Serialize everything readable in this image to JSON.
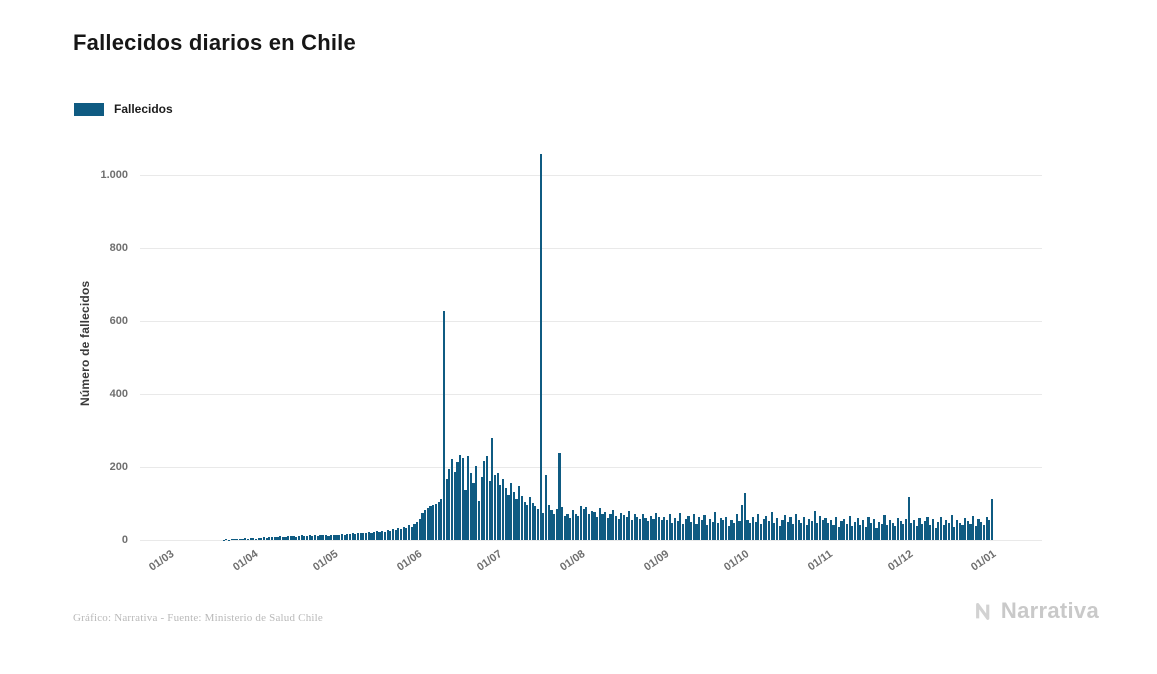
{
  "page": {
    "background": "#ffffff"
  },
  "footer": {
    "credit": "Gráfico: Narrativa - Fuente: Ministerio de Salud Chile",
    "logo_text": "Narrativa"
  },
  "chart_data": {
    "type": "bar",
    "title": "Fallecidos diarios en Chile",
    "legend_label": "Fallecidos",
    "legend_position": "top-left",
    "ylabel": "Número de fallecidos",
    "xlabel": "",
    "grid": true,
    "bar_color": "#0f5b82",
    "ylim": [
      0,
      1080
    ],
    "y_ticks": {
      "labels": [
        "0",
        "200",
        "400",
        "600",
        "800",
        "1.000"
      ],
      "values": [
        0,
        200,
        400,
        600,
        800,
        1000
      ]
    },
    "x_ticks": {
      "labels": [
        "01/03",
        "01/04",
        "01/05",
        "01/06",
        "01/07",
        "01/08",
        "01/09",
        "01/10",
        "01/11",
        "01/12",
        "01/01"
      ],
      "day_indices": [
        0,
        31,
        61,
        92,
        122,
        153,
        184,
        214,
        245,
        275,
        306
      ]
    },
    "values": [
      0,
      0,
      0,
      0,
      0,
      0,
      0,
      0,
      0,
      0,
      0,
      0,
      0,
      0,
      0,
      0,
      0,
      0,
      0,
      0,
      1,
      2,
      1,
      2,
      3,
      2,
      4,
      3,
      5,
      4,
      6,
      5,
      4,
      6,
      5,
      7,
      6,
      8,
      7,
      9,
      8,
      10,
      9,
      8,
      11,
      10,
      12,
      9,
      11,
      13,
      10,
      12,
      14,
      11,
      13,
      12,
      14,
      13,
      15,
      12,
      14,
      13,
      15,
      14,
      16,
      15,
      17,
      16,
      18,
      17,
      19,
      18,
      20,
      19,
      21,
      20,
      22,
      24,
      21,
      26,
      23,
      28,
      25,
      30,
      27,
      33,
      30,
      36,
      32,
      40,
      36,
      45,
      49,
      57,
      75,
      81,
      87,
      92,
      96,
      98,
      103,
      112,
      627,
      168,
      195,
      222,
      186,
      214,
      232,
      224,
      138,
      231,
      184,
      157,
      202,
      108,
      173,
      216,
      230,
      162,
      279,
      177,
      183,
      151,
      166,
      142,
      123,
      156,
      131,
      112,
      147,
      121,
      104,
      96,
      117,
      101,
      92,
      86,
      1057,
      75,
      178,
      96,
      81,
      70,
      86,
      238,
      90,
      66,
      71,
      61,
      81,
      71,
      66,
      94,
      84,
      90,
      71,
      80,
      76,
      64,
      88,
      72,
      78,
      61,
      70,
      83,
      65,
      58,
      75,
      68,
      62,
      80,
      55,
      70,
      64,
      58,
      72,
      60,
      52,
      66,
      58,
      74,
      62,
      56,
      64,
      55,
      70,
      48,
      60,
      52,
      75,
      45,
      58,
      66,
      50,
      72,
      44,
      62,
      56,
      68,
      40,
      58,
      50,
      76,
      46,
      60,
      54,
      64,
      38,
      56,
      48,
      70,
      52,
      95,
      130,
      55,
      48,
      62,
      50,
      70,
      44,
      58,
      66,
      52,
      76,
      46,
      60,
      38,
      54,
      68,
      50,
      62,
      44,
      72,
      56,
      48,
      64,
      40,
      58,
      52,
      80,
      46,
      66,
      54,
      60,
      48,
      56,
      40,
      62,
      35,
      52,
      58,
      44,
      66,
      38,
      50,
      60,
      42,
      54,
      36,
      64,
      46,
      58,
      34,
      50,
      44,
      68,
      40,
      56,
      48,
      38,
      60,
      52,
      44,
      58,
      118,
      48,
      56,
      38,
      60,
      44,
      52,
      64,
      40,
      58,
      34,
      50,
      62,
      42,
      54,
      46,
      68,
      36,
      56,
      48,
      40,
      60,
      52,
      44,
      66,
      38,
      58,
      50,
      42,
      62,
      55,
      113
    ]
  }
}
